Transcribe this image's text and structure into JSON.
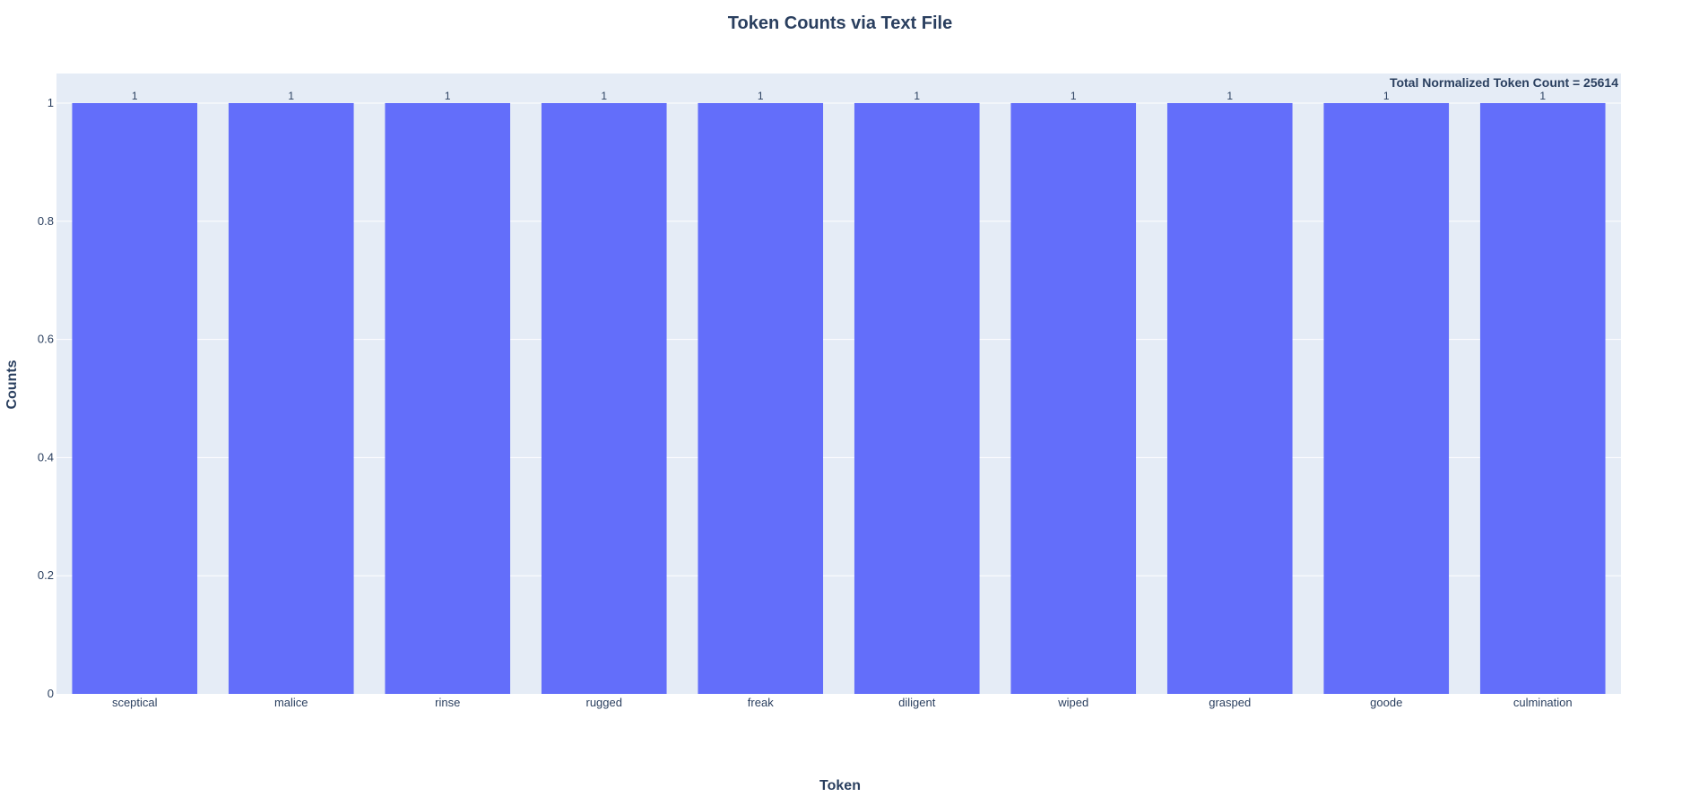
{
  "chart_data": {
    "type": "bar",
    "title": "Token Counts via Text File",
    "xlabel": "Token",
    "ylabel": "Counts",
    "categories": [
      "sceptical",
      "malice",
      "rinse",
      "rugged",
      "freak",
      "diligent",
      "wiped",
      "grasped",
      "goode",
      "culmination"
    ],
    "values": [
      1,
      1,
      1,
      1,
      1,
      1,
      1,
      1,
      1,
      1
    ],
    "data_labels": [
      "1",
      "1",
      "1",
      "1",
      "1",
      "1",
      "1",
      "1",
      "1",
      "1"
    ],
    "ylim": [
      0,
      1.05
    ],
    "yticks": [
      0,
      0.2,
      0.4,
      0.6,
      0.8,
      1
    ],
    "ytick_labels": [
      "0",
      "0.2",
      "0.4",
      "0.6",
      "0.8",
      "1"
    ],
    "grid": true,
    "annotation": "Total Normalized Token Count = 25614",
    "annotation_position": "top-right",
    "colors": {
      "bar": "#636efa",
      "plot_bg": "#e5ecf6",
      "grid": "#ffffff",
      "text": "#2a3f5f"
    }
  }
}
